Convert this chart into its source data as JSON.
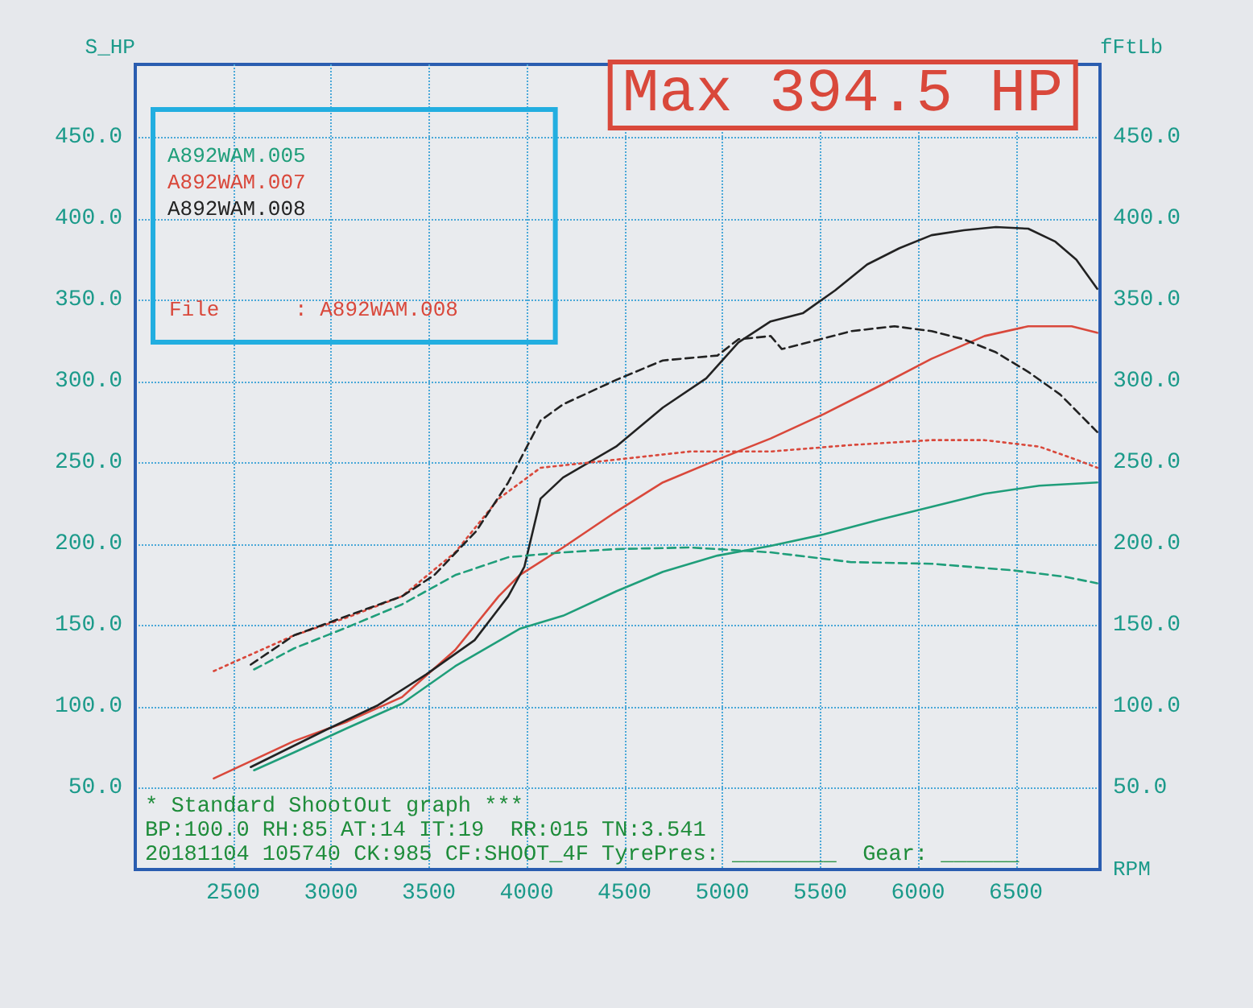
{
  "chart_data": {
    "type": "line",
    "title": "Max 394.5 HP",
    "xlabel": "RPM",
    "ylabel": "S_HP",
    "y2label": "fFtLb",
    "annotations": [
      "File      : A892WAM.008",
      "* Standard ShootOut graph ***",
      "BP:100.0 RH:85 AT:14 IT:19  RR:015 TN:3.541",
      "20181104 105740 CK:985 CF:SHOOT_4F TyrePres: ________  Gear: ______"
    ],
    "xlim": [
      2000,
      6930
    ],
    "xticks": [
      2500,
      3000,
      3500,
      4000,
      4500,
      5000,
      5500,
      6000,
      6500
    ],
    "ylim": [
      0,
      495
    ],
    "yticks": [
      {
        "value": 50,
        "label": "50.0"
      },
      {
        "value": 100,
        "label": "100.0"
      },
      {
        "value": 150,
        "label": "150.0"
      },
      {
        "value": 200,
        "label": "200.0"
      },
      {
        "value": 250,
        "label": "250.0"
      },
      {
        "value": 300,
        "label": "300.0"
      },
      {
        "value": 350,
        "label": "350.0"
      },
      {
        "value": 400,
        "label": "400.0"
      },
      {
        "value": 450,
        "label": "450.0"
      }
    ],
    "y2lim": [
      0,
      495
    ],
    "y2ticks": [
      {
        "value": 50,
        "label": "50.0"
      },
      {
        "value": 100,
        "label": "100.0"
      },
      {
        "value": 150,
        "label": "150.0"
      },
      {
        "value": 200,
        "label": "200.0"
      },
      {
        "value": 250,
        "label": "250.0"
      },
      {
        "value": 300,
        "label": "300.0"
      },
      {
        "value": 350,
        "label": "350.0"
      },
      {
        "value": 400,
        "label": "400.0"
      },
      {
        "value": 450,
        "label": "450.0"
      }
    ],
    "grid": true,
    "legend": "top left",
    "marker": "none",
    "series": [
      {
        "name": "A892WAM.005",
        "color": "#1f9e7a",
        "line_style": "solid",
        "x": [
          2607,
          2812,
          3084,
          3363,
          3635,
          3964,
          4186,
          4457,
          4696,
          4975,
          5247,
          5518,
          5798,
          6069,
          6340,
          6620,
          6916
        ],
        "values": [
          61,
          72,
          87,
          102,
          125,
          148,
          156,
          171,
          183,
          193,
          199,
          206,
          215,
          223,
          231,
          236,
          238
        ]
      },
      {
        "name": "A892WAM.007",
        "color": "#d9483b",
        "line_style": "solid",
        "x": [
          2401,
          2812,
          3084,
          3363,
          3635,
          3857,
          3964,
          4186,
          4457,
          4696,
          4975,
          5247,
          5518,
          5798,
          6069,
          6340,
          6563,
          6785,
          6916
        ],
        "values": [
          56,
          79,
          91,
          106,
          135,
          168,
          181,
          198,
          220,
          238,
          252,
          265,
          280,
          297,
          314,
          328,
          334,
          334,
          330
        ]
      },
      {
        "name": "A892WAM.008",
        "color": "#222222",
        "line_style": "solid",
        "x": [
          2590,
          2977,
          3240,
          3487,
          3734,
          3906,
          3988,
          4071,
          4186,
          4457,
          4696,
          4918,
          5082,
          5247,
          5411,
          5576,
          5740,
          5905,
          6069,
          6234,
          6398,
          6563,
          6702,
          6809,
          6916
        ],
        "values": [
          63,
          86,
          101,
          120,
          141,
          168,
          186,
          228,
          241,
          260,
          284,
          302,
          324,
          337,
          342,
          356,
          372,
          382,
          390,
          393,
          395,
          394,
          386,
          375,
          357
        ]
      },
      {
        "color": "#1f9e7a",
        "line_style": "dashed",
        "x": [
          2607,
          2812,
          3084,
          3363,
          3635,
          3906,
          4186,
          4457,
          4836,
          5247,
          5658,
          6069,
          6480,
          6752,
          6916
        ],
        "values": [
          123,
          136,
          149,
          163,
          181,
          192,
          195,
          197,
          198,
          195,
          189,
          188,
          184,
          180,
          176
        ]
      },
      {
        "color": "#d9483b",
        "line_style": "dotted",
        "x": [
          2401,
          2812,
          3084,
          3363,
          3635,
          3857,
          4071,
          4457,
          4836,
          5247,
          5658,
          6069,
          6340,
          6620,
          6809,
          6916
        ],
        "values": [
          122,
          144,
          155,
          168,
          195,
          228,
          247,
          252,
          257,
          257,
          261,
          264,
          264,
          260,
          252,
          247
        ]
      },
      {
        "color": "#222222",
        "line_style": "dashed",
        "x": [
          2590,
          2812,
          3084,
          3363,
          3528,
          3742,
          3906,
          4071,
          4186,
          4457,
          4696,
          4975,
          5082,
          5247,
          5304,
          5469,
          5658,
          5880,
          6069,
          6234,
          6398,
          6563,
          6727,
          6916
        ],
        "values": [
          126,
          144,
          156,
          168,
          181,
          208,
          238,
          276,
          286,
          301,
          313,
          316,
          326,
          328,
          320,
          325,
          331,
          334,
          331,
          326,
          318,
          306,
          292,
          269
        ]
      }
    ]
  }
}
